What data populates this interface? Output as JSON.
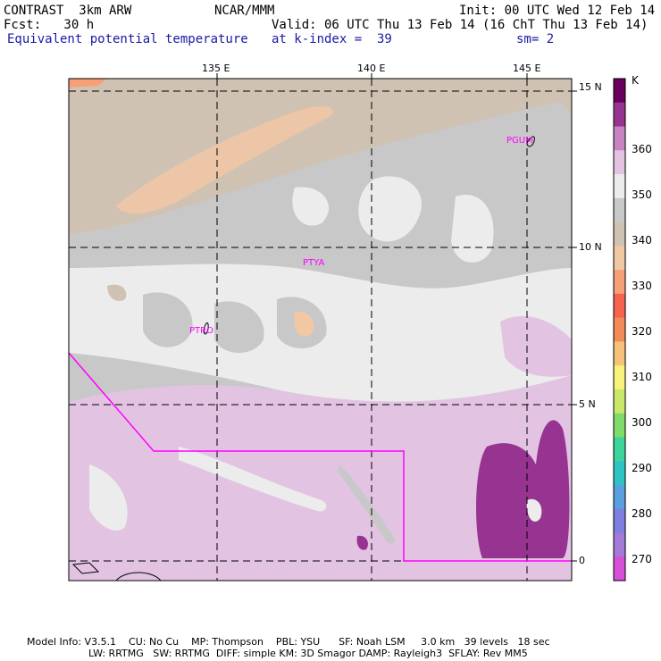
{
  "header": {
    "model_label": "CONTRAST  3km ARW",
    "center_label": "NCAR/MMM",
    "init_label": "Init: 00 UTC Wed 12 Feb 14",
    "fcst_label": "Fcst:   30 h",
    "valid_label": "Valid: 06 UTC Thu 13 Feb 14 (16 ChT Thu 13 Feb 14)",
    "field_label": "Equivalent potential temperature",
    "level_label": "at k-index =  39",
    "smooth_label": "sm= 2"
  },
  "axes": {
    "lon_ticks": [
      "135 E",
      "140 E",
      "145 E"
    ],
    "lat_ticks": [
      "15 N",
      "10 N",
      "5 N",
      "0"
    ]
  },
  "stations": [
    "PGUM",
    "PTYA",
    "PTRO"
  ],
  "colorbar": {
    "unit": "K",
    "labels": [
      "360",
      "350",
      "340",
      "330",
      "320",
      "310",
      "300",
      "290",
      "280",
      "270"
    ],
    "colors": [
      "#6a005e",
      "#973491",
      "#c783c2",
      "#e2c4e2",
      "#ececec",
      "#c8c8c8",
      "#d0c2b2",
      "#f2c7a4",
      "#f7a078",
      "#f7634f",
      "#f28a5a",
      "#f6c178",
      "#f7f27a",
      "#cbe76a",
      "#7fdc6a",
      "#3cd49a",
      "#2fc4c4",
      "#5aa0de",
      "#7f7fe2",
      "#a47ad8",
      "#d64fd6"
    ]
  },
  "footer": {
    "line1": "Model Info: V3.5.1    CU: No Cu    MP: Thompson    PBL: YSU      SF: Noah LSM     3.0 km   39 levels   18 sec",
    "line2": "LW: RRTMG   SW: RRTMG  DIFF: simple KM: 3D Smagor DAMP: Rayleigh3  SFLAY: Rev MM5"
  }
}
